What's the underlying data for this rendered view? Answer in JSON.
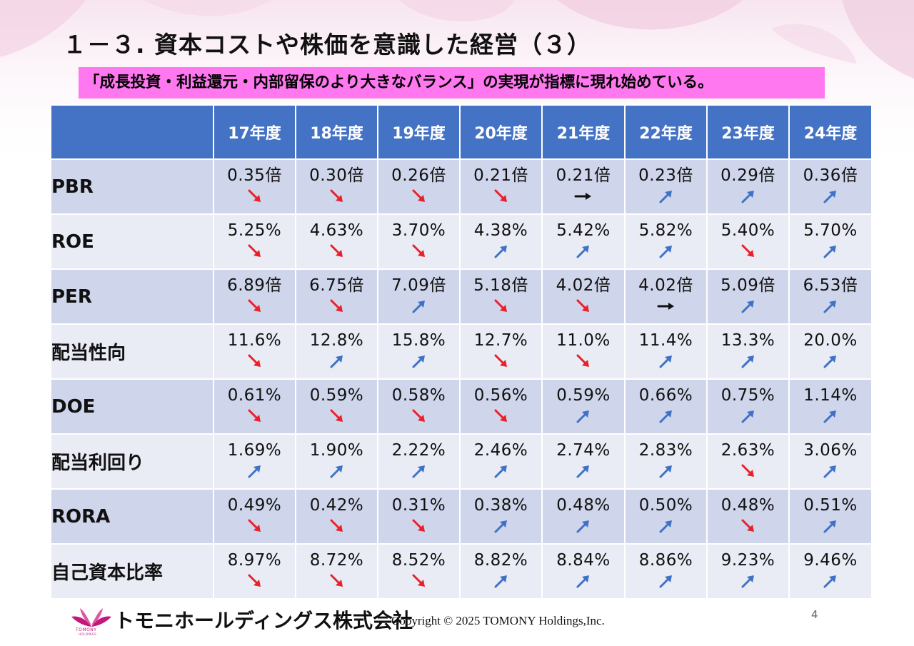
{
  "title": "１－３. 資本コストや株価を意識した経営（３）",
  "subtitle": "「成長投資・利益還元・内部留保のより大きなバランス」の実現が指標に現れ始めている。",
  "table": {
    "corner": "",
    "years": [
      "17年度",
      "18年度",
      "19年度",
      "20年度",
      "21年度",
      "22年度",
      "23年度",
      "24年度"
    ],
    "rows": [
      {
        "label": "PBR",
        "values": [
          "0.35倍",
          "0.30倍",
          "0.26倍",
          "0.21倍",
          "0.21倍",
          "0.23倍",
          "0.29倍",
          "0.36倍"
        ],
        "trends": [
          "down",
          "down",
          "down",
          "down",
          "flat",
          "up",
          "up",
          "up"
        ]
      },
      {
        "label": "ROE",
        "values": [
          "5.25%",
          "4.63%",
          "3.70%",
          "4.38%",
          "5.42%",
          "5.82%",
          "5.40%",
          "5.70%"
        ],
        "trends": [
          "down",
          "down",
          "down",
          "up",
          "up",
          "up",
          "down",
          "up"
        ]
      },
      {
        "label": "PER",
        "values": [
          "6.89倍",
          "6.75倍",
          "7.09倍",
          "5.18倍",
          "4.02倍",
          "4.02倍",
          "5.09倍",
          "6.53倍"
        ],
        "trends": [
          "down",
          "down",
          "up",
          "down",
          "down",
          "flat",
          "up",
          "up"
        ]
      },
      {
        "label": "配当性向",
        "values": [
          "11.6%",
          "12.8%",
          "15.8%",
          "12.7%",
          "11.0%",
          "11.4%",
          "13.3%",
          "20.0%"
        ],
        "trends": [
          "down",
          "up",
          "up",
          "down",
          "down",
          "up",
          "up",
          "up"
        ]
      },
      {
        "label": "DOE",
        "values": [
          "0.61%",
          "0.59%",
          "0.58%",
          "0.56%",
          "0.59%",
          "0.66%",
          "0.75%",
          "1.14%"
        ],
        "trends": [
          "down",
          "down",
          "down",
          "down",
          "up",
          "up",
          "up",
          "up"
        ]
      },
      {
        "label": "配当利回り",
        "values": [
          "1.69%",
          "1.90%",
          "2.22%",
          "2.46%",
          "2.74%",
          "2.83%",
          "2.63%",
          "3.06%"
        ],
        "trends": [
          "up",
          "up",
          "up",
          "up",
          "up",
          "up",
          "down",
          "up"
        ]
      },
      {
        "label": "RORA",
        "values": [
          "0.49%",
          "0.42%",
          "0.31%",
          "0.38%",
          "0.48%",
          "0.50%",
          "0.48%",
          "0.51%"
        ],
        "trends": [
          "down",
          "down",
          "down",
          "up",
          "up",
          "up",
          "down",
          "up"
        ]
      },
      {
        "label": "自己資本比率",
        "values": [
          "8.97%",
          "8.72%",
          "8.52%",
          "8.82%",
          "8.84%",
          "8.86%",
          "9.23%",
          "9.46%"
        ],
        "trends": [
          "down",
          "down",
          "down",
          "up",
          "up",
          "up",
          "up",
          "up"
        ]
      }
    ]
  },
  "colors": {
    "header_bg": "#4472c4",
    "row_band_a": "#cfd5ea",
    "row_band_b": "#e9ebf5",
    "arrow_down": "#e8212b",
    "arrow_up": "#3f72c6",
    "arrow_flat": "#111111",
    "highlight": "#ff78f0",
    "brand": "#c2187a"
  },
  "icons": {
    "down": "arrow-down-right-icon",
    "up": "arrow-up-right-icon",
    "flat": "arrow-right-icon"
  },
  "footer": {
    "logo_text": "TOMONY",
    "logo_subtext": "HOLDINGS",
    "company": "トモニホールディングス株式会社",
    "copyright": "Copyright © 2025 TOMONY Holdings,Inc.",
    "page_number": "4"
  }
}
